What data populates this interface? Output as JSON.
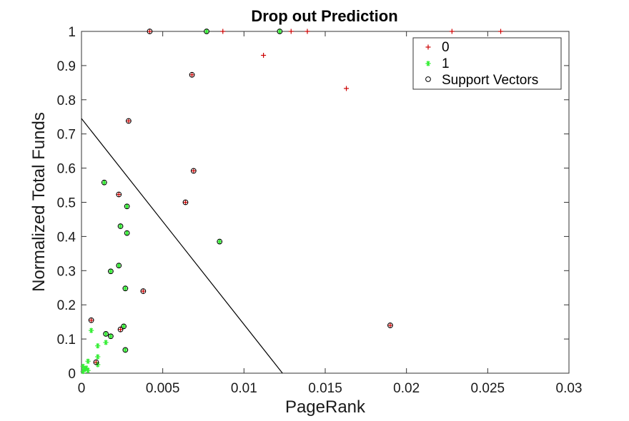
{
  "chart_data": {
    "type": "scatter",
    "title": "Drop out Prediction",
    "xlabel": "PageRank",
    "ylabel": "Normalized Total Funds",
    "xlim": [
      0,
      0.03
    ],
    "ylim": [
      0,
      1
    ],
    "xticks": [
      0,
      0.005,
      0.01,
      0.015,
      0.02,
      0.025,
      0.03
    ],
    "xtick_labels": [
      "0",
      "0.005",
      "0.01",
      "0.015",
      "0.02",
      "0.025",
      "0.03"
    ],
    "yticks": [
      0,
      0.1,
      0.2,
      0.3,
      0.4,
      0.5,
      0.6,
      0.7,
      0.8,
      0.9,
      1
    ],
    "ytick_labels": [
      "0",
      "0.1",
      "0.2",
      "0.3",
      "0.4",
      "0.5",
      "0.6",
      "0.7",
      "0.8",
      "0.9",
      "1"
    ],
    "grid": false,
    "legend_position": "top-right",
    "series": [
      {
        "name": "0",
        "marker": "plus",
        "color": "#cc0000",
        "points": [
          [
            0.0042,
            1.0
          ],
          [
            0.0087,
            1.0
          ],
          [
            0.0129,
            1.0
          ],
          [
            0.0139,
            1.0
          ],
          [
            0.0228,
            1.0
          ],
          [
            0.0258,
            1.0
          ],
          [
            0.0112,
            0.93
          ],
          [
            0.0068,
            0.873
          ],
          [
            0.0163,
            0.833
          ],
          [
            0.0029,
            0.738
          ],
          [
            0.0069,
            0.592
          ],
          [
            0.0023,
            0.523
          ],
          [
            0.0064,
            0.5
          ],
          [
            0.0038,
            0.24
          ],
          [
            0.019,
            0.14
          ],
          [
            0.0006,
            0.155
          ],
          [
            0.0024,
            0.128
          ],
          [
            0.0009,
            0.032
          ]
        ]
      },
      {
        "name": "1",
        "marker": "asterisk",
        "color": "#33ee33",
        "points": [
          [
            0.0077,
            1.0
          ],
          [
            0.0122,
            1.0
          ],
          [
            0.0014,
            0.558
          ],
          [
            0.0028,
            0.488
          ],
          [
            0.0024,
            0.43
          ],
          [
            0.0028,
            0.41
          ],
          [
            0.0085,
            0.385
          ],
          [
            0.0023,
            0.315
          ],
          [
            0.0018,
            0.298
          ],
          [
            0.0027,
            0.248
          ],
          [
            0.0026,
            0.137
          ],
          [
            0.0006,
            0.125
          ],
          [
            0.0015,
            0.115
          ],
          [
            0.0018,
            0.108
          ],
          [
            0.0027,
            0.068
          ],
          [
            0.0015,
            0.09
          ],
          [
            0.001,
            0.08
          ],
          [
            0.001,
            0.048
          ],
          [
            0.0004,
            0.035
          ],
          [
            0.0001,
            0.02
          ],
          [
            0.0002,
            0.012
          ],
          [
            0.0004,
            0.008
          ],
          [
            0.0001,
            0.005
          ],
          [
            0.0003,
            0.015
          ],
          [
            0.001,
            0.025
          ]
        ]
      },
      {
        "name": "Support Vectors",
        "marker": "circle",
        "color": "#000000",
        "points": [
          [
            0.0042,
            1.0
          ],
          [
            0.0077,
            1.0
          ],
          [
            0.0122,
            1.0
          ],
          [
            0.0068,
            0.873
          ],
          [
            0.0029,
            0.738
          ],
          [
            0.0069,
            0.592
          ],
          [
            0.0014,
            0.558
          ],
          [
            0.0023,
            0.523
          ],
          [
            0.0064,
            0.5
          ],
          [
            0.0028,
            0.488
          ],
          [
            0.0024,
            0.43
          ],
          [
            0.0028,
            0.41
          ],
          [
            0.0085,
            0.385
          ],
          [
            0.0023,
            0.315
          ],
          [
            0.0018,
            0.298
          ],
          [
            0.0027,
            0.248
          ],
          [
            0.0038,
            0.24
          ],
          [
            0.019,
            0.14
          ],
          [
            0.0006,
            0.155
          ],
          [
            0.0026,
            0.137
          ],
          [
            0.0024,
            0.128
          ],
          [
            0.0015,
            0.115
          ],
          [
            0.0018,
            0.108
          ],
          [
            0.0027,
            0.068
          ],
          [
            0.0009,
            0.032
          ]
        ]
      }
    ],
    "decision_boundary": {
      "type": "line",
      "color": "#000000",
      "points": [
        [
          0,
          0.745
        ],
        [
          0.01237,
          0
        ]
      ]
    }
  }
}
